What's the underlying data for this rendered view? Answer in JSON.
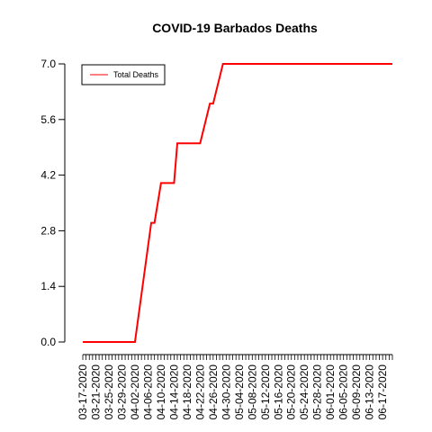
{
  "chart_data": {
    "type": "line",
    "title": "COVID-19 Barbados Deaths",
    "xlabel": "",
    "ylabel": "",
    "ylim": [
      0,
      7
    ],
    "yticks": [
      0.0,
      1.4,
      2.8,
      4.2,
      5.6,
      7.0
    ],
    "ytick_labels": [
      "0.0",
      "1.4",
      "2.8",
      "4.2",
      "5.6",
      "7.0"
    ],
    "x_start": "03-17-2020",
    "x_end": "06-20-2020",
    "xtick_labels": [
      "03-17-2020",
      "03-21-2020",
      "03-25-2020",
      "03-29-2020",
      "04-02-2020",
      "04-06-2020",
      "04-10-2020",
      "04-14-2020",
      "04-18-2020",
      "04-22-2020",
      "04-26-2020",
      "04-30-2020",
      "05-04-2020",
      "05-08-2020",
      "05-12-2020",
      "05-16-2020",
      "05-20-2020",
      "05-24-2020",
      "05-28-2020",
      "06-01-2020",
      "06-05-2020",
      "06-09-2020",
      "06-13-2020",
      "06-17-2020"
    ],
    "legend": {
      "position": "top-left",
      "entries": [
        "Total Deaths"
      ]
    },
    "series": [
      {
        "name": "Total Deaths",
        "color": "#ff0000",
        "x": [
          "03-17-2020",
          "04-02-2020",
          "04-07-2020",
          "04-08-2020",
          "04-10-2020",
          "04-11-2020",
          "04-14-2020",
          "04-15-2020",
          "04-21-2020",
          "04-22-2020",
          "04-25-2020",
          "04-26-2020",
          "04-29-2020",
          "06-20-2020"
        ],
        "values": [
          0,
          0,
          3,
          3,
          4,
          4,
          4,
          5,
          5,
          5,
          6,
          6,
          7,
          7
        ]
      }
    ]
  }
}
